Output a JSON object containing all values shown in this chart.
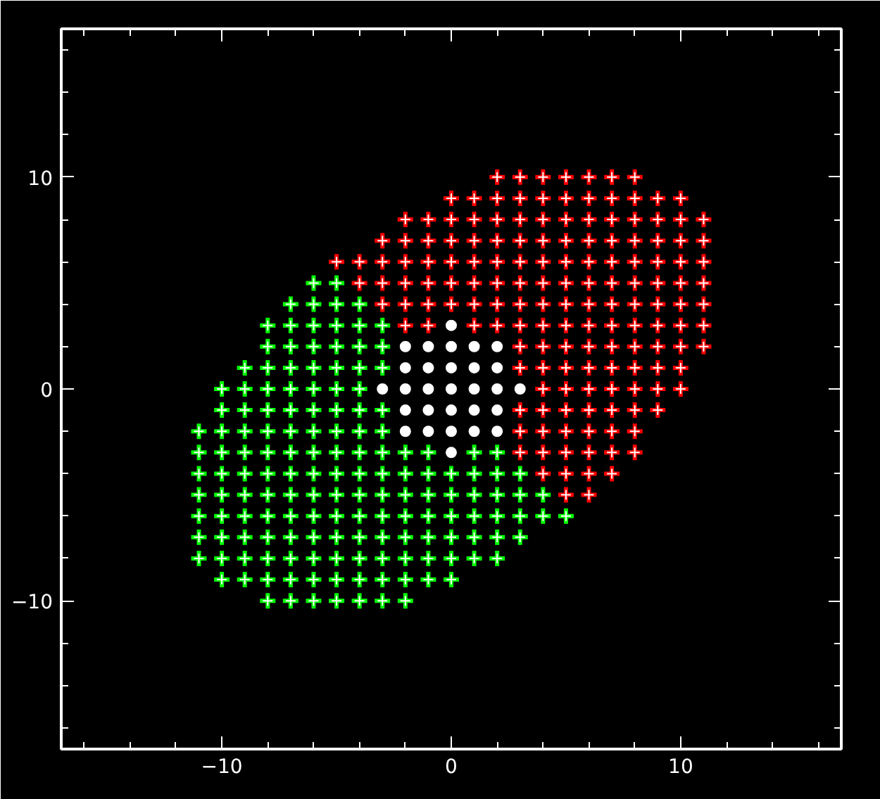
{
  "chart_data": {
    "type": "scatter",
    "xlim": [
      -17,
      17
    ],
    "ylim": [
      -17,
      17
    ],
    "xticks": [
      {
        "value": -16,
        "label": null
      },
      {
        "value": -14,
        "label": null
      },
      {
        "value": -12,
        "label": null
      },
      {
        "value": -10,
        "label": "−10"
      },
      {
        "value": -8,
        "label": null
      },
      {
        "value": -6,
        "label": null
      },
      {
        "value": -4,
        "label": null
      },
      {
        "value": -2,
        "label": null
      },
      {
        "value": 0,
        "label": "0"
      },
      {
        "value": 2,
        "label": null
      },
      {
        "value": 4,
        "label": null
      },
      {
        "value": 6,
        "label": null
      },
      {
        "value": 8,
        "label": null
      },
      {
        "value": 10,
        "label": "10"
      },
      {
        "value": 12,
        "label": null
      },
      {
        "value": 14,
        "label": null
      },
      {
        "value": 16,
        "label": null
      }
    ],
    "yticks": [
      {
        "value": -16,
        "label": null
      },
      {
        "value": -14,
        "label": null
      },
      {
        "value": -12,
        "label": null
      },
      {
        "value": -10,
        "label": "−10"
      },
      {
        "value": -8,
        "label": null
      },
      {
        "value": -6,
        "label": null
      },
      {
        "value": -4,
        "label": null
      },
      {
        "value": -2,
        "label": null
      },
      {
        "value": 0,
        "label": "0"
      },
      {
        "value": 2,
        "label": null
      },
      {
        "value": 4,
        "label": null
      },
      {
        "value": 6,
        "label": null
      },
      {
        "value": 8,
        "label": null
      },
      {
        "value": 10,
        "label": "10"
      },
      {
        "value": 12,
        "label": null
      },
      {
        "value": 14,
        "label": null
      },
      {
        "value": 16,
        "label": null
      }
    ],
    "series": [
      {
        "color": "#ff0000",
        "marker": "cross",
        "x": [
          2,
          3,
          4,
          5,
          6,
          7,
          8,
          0,
          1,
          2,
          3,
          4,
          5,
          6,
          7,
          8,
          9,
          10,
          -2,
          -1,
          0,
          1,
          2,
          3,
          4,
          5,
          6,
          7,
          8,
          9,
          10,
          11,
          -3,
          -2,
          -1,
          0,
          1,
          2,
          3,
          4,
          5,
          6,
          7,
          8,
          9,
          10,
          11,
          -5,
          -4,
          -3,
          -2,
          -1,
          0,
          1,
          2,
          3,
          4,
          5,
          6,
          7,
          8,
          9,
          10,
          11,
          -4,
          -3,
          -2,
          -1,
          0,
          1,
          2,
          3,
          4,
          5,
          6,
          7,
          8,
          9,
          10,
          11,
          -3,
          -2,
          -1,
          0,
          1,
          2,
          3,
          4,
          5,
          6,
          7,
          8,
          9,
          10,
          11,
          -2,
          -1,
          1,
          2,
          3,
          4,
          5,
          6,
          7,
          8,
          9,
          10,
          11,
          3,
          4,
          5,
          6,
          7,
          8,
          9,
          10,
          11,
          3,
          4,
          5,
          6,
          7,
          8,
          9,
          10,
          4,
          5,
          6,
          7,
          8,
          9,
          10,
          3,
          4,
          5,
          6,
          7,
          8,
          9,
          3,
          4,
          5,
          6,
          7,
          8,
          3,
          4,
          5,
          6,
          7,
          8,
          4,
          5,
          6,
          7,
          5,
          6
        ],
        "values": [
          10,
          10,
          10,
          10,
          10,
          10,
          10,
          9,
          9,
          9,
          9,
          9,
          9,
          9,
          9,
          9,
          9,
          9,
          8,
          8,
          8,
          8,
          8,
          8,
          8,
          8,
          8,
          8,
          8,
          8,
          8,
          8,
          7,
          7,
          7,
          7,
          7,
          7,
          7,
          7,
          7,
          7,
          7,
          7,
          7,
          7,
          7,
          6,
          6,
          6,
          6,
          6,
          6,
          6,
          6,
          6,
          6,
          6,
          6,
          6,
          6,
          6,
          6,
          6,
          5,
          5,
          5,
          5,
          5,
          5,
          5,
          5,
          5,
          5,
          5,
          5,
          5,
          5,
          5,
          5,
          4,
          4,
          4,
          4,
          4,
          4,
          4,
          4,
          4,
          4,
          4,
          4,
          4,
          4,
          4,
          3,
          3,
          3,
          3,
          3,
          3,
          3,
          3,
          3,
          3,
          3,
          3,
          3,
          2,
          2,
          2,
          2,
          2,
          2,
          2,
          2,
          2,
          1,
          1,
          1,
          1,
          1,
          1,
          1,
          1,
          0,
          0,
          0,
          0,
          0,
          0,
          0,
          -1,
          -1,
          -1,
          -1,
          -1,
          -1,
          -1,
          -2,
          -2,
          -2,
          -2,
          -2,
          -2,
          -3,
          -3,
          -3,
          -3,
          -3,
          -3,
          -4,
          -4,
          -4,
          -4,
          -5,
          -5
        ]
      },
      {
        "color": "#ffffff",
        "marker": "circle",
        "x": [
          0,
          -2,
          -1,
          0,
          1,
          2,
          -2,
          -1,
          0,
          1,
          2,
          -3,
          -2,
          -1,
          0,
          1,
          2,
          3,
          -2,
          -1,
          0,
          1,
          2,
          -2,
          -1,
          0,
          1,
          2,
          0
        ],
        "values": [
          3,
          2,
          2,
          2,
          2,
          2,
          1,
          1,
          1,
          1,
          1,
          0,
          0,
          0,
          0,
          0,
          0,
          0,
          -1,
          -1,
          -1,
          -1,
          -1,
          -2,
          -2,
          -2,
          -2,
          -2,
          -3
        ]
      },
      {
        "color": "#00ff00",
        "marker": "cross",
        "x": [
          -6,
          -5,
          -7,
          -6,
          -5,
          -4,
          -8,
          -7,
          -6,
          -5,
          -4,
          -3,
          -8,
          -7,
          -6,
          -5,
          -4,
          -3,
          -9,
          -8,
          -7,
          -6,
          -5,
          -4,
          -3,
          -10,
          -9,
          -8,
          -7,
          -6,
          -5,
          -4,
          -10,
          -9,
          -8,
          -7,
          -6,
          -5,
          -4,
          -3,
          -11,
          -10,
          -9,
          -8,
          -7,
          -6,
          -5,
          -4,
          -3,
          -11,
          -10,
          -9,
          -8,
          -7,
          -6,
          -5,
          -4,
          -3,
          -2,
          -1,
          1,
          2,
          -11,
          -10,
          -9,
          -8,
          -7,
          -6,
          -5,
          -4,
          -3,
          -2,
          -1,
          0,
          1,
          2,
          3,
          -11,
          -10,
          -9,
          -8,
          -7,
          -6,
          -5,
          -4,
          -3,
          -2,
          -1,
          0,
          1,
          2,
          3,
          4,
          -11,
          -10,
          -9,
          -8,
          -7,
          -6,
          -5,
          -4,
          -3,
          -2,
          -1,
          0,
          1,
          2,
          3,
          4,
          5,
          -11,
          -10,
          -9,
          -8,
          -7,
          -6,
          -5,
          -4,
          -3,
          -2,
          -1,
          0,
          1,
          2,
          3,
          -11,
          -10,
          -9,
          -8,
          -7,
          -6,
          -5,
          -4,
          -3,
          -2,
          -1,
          0,
          1,
          2,
          -10,
          -9,
          -8,
          -7,
          -6,
          -5,
          -4,
          -3,
          -2,
          -1,
          0,
          -8,
          -7,
          -6,
          -5,
          -4,
          -3,
          -2
        ],
        "values": [
          5,
          5,
          4,
          4,
          4,
          4,
          3,
          3,
          3,
          3,
          3,
          3,
          2,
          2,
          2,
          2,
          2,
          2,
          1,
          1,
          1,
          1,
          1,
          1,
          1,
          0,
          0,
          0,
          0,
          0,
          0,
          0,
          -1,
          -1,
          -1,
          -1,
          -1,
          -1,
          -1,
          -1,
          -2,
          -2,
          -2,
          -2,
          -2,
          -2,
          -2,
          -2,
          -2,
          -3,
          -3,
          -3,
          -3,
          -3,
          -3,
          -3,
          -3,
          -3,
          -3,
          -3,
          -3,
          -3,
          -4,
          -4,
          -4,
          -4,
          -4,
          -4,
          -4,
          -4,
          -4,
          -4,
          -4,
          -4,
          -4,
          -4,
          -4,
          -5,
          -5,
          -5,
          -5,
          -5,
          -5,
          -5,
          -5,
          -5,
          -5,
          -5,
          -5,
          -5,
          -5,
          -5,
          -5,
          -6,
          -6,
          -6,
          -6,
          -6,
          -6,
          -6,
          -6,
          -6,
          -6,
          -6,
          -6,
          -6,
          -6,
          -6,
          -6,
          -6,
          -7,
          -7,
          -7,
          -7,
          -7,
          -7,
          -7,
          -7,
          -7,
          -7,
          -7,
          -7,
          -7,
          -7,
          -7,
          -8,
          -8,
          -8,
          -8,
          -8,
          -8,
          -8,
          -8,
          -8,
          -8,
          -8,
          -8,
          -8,
          -8,
          -9,
          -9,
          -9,
          -9,
          -9,
          -9,
          -9,
          -9,
          -9,
          -9,
          -9,
          -10,
          -10,
          -10,
          -10,
          -10,
          -10,
          -10
        ]
      }
    ]
  }
}
